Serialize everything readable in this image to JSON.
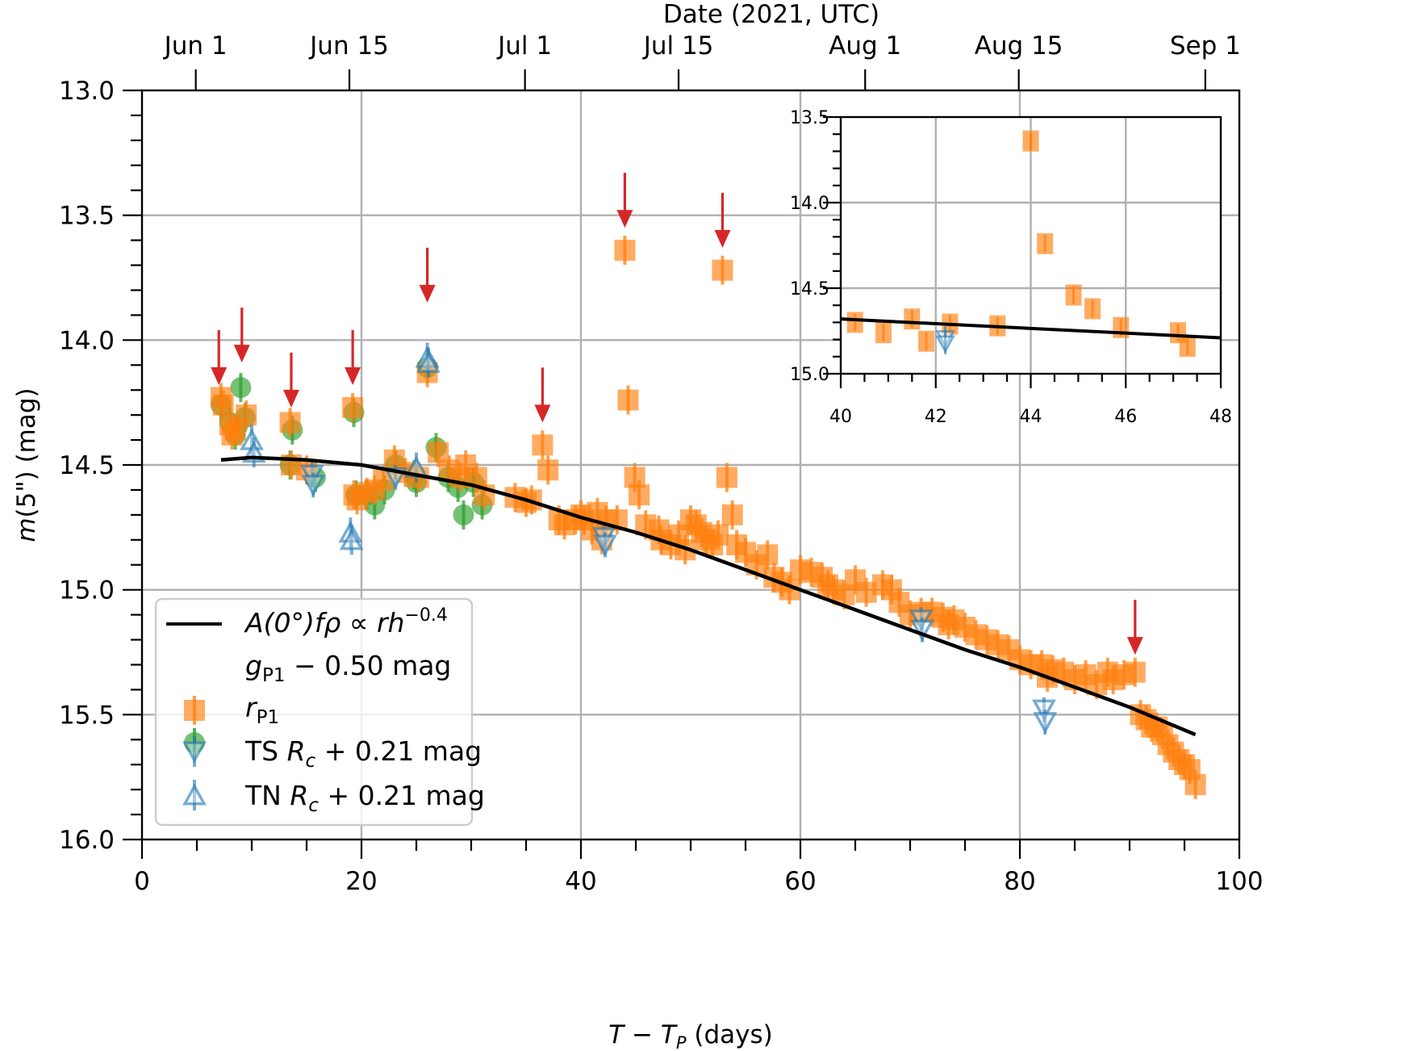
{
  "chart_data": {
    "type": "scatter",
    "title": "",
    "xlabel": "T − T_P (days)",
    "xlabel_parts": {
      "italic1": "T",
      "minus": " − ",
      "italic2": "T",
      "sub": "P",
      "rest": " (days)"
    },
    "ylabel": "m(5\") (mag)",
    "ylabel_parts": {
      "italic": "m",
      "rest": "(5\") (mag)"
    },
    "top_xlabel": "Date (2021, UTC)",
    "xlim": [
      0,
      100
    ],
    "ylim": [
      16.0,
      13.0
    ],
    "y_inverted": true,
    "grid": true,
    "xticks": [
      0,
      20,
      40,
      60,
      80,
      100
    ],
    "xtick_labels": [
      "0",
      "20",
      "40",
      "60",
      "80",
      "100"
    ],
    "yticks": [
      13.0,
      13.5,
      14.0,
      14.5,
      15.0,
      15.5,
      16.0
    ],
    "ytick_labels": [
      "13.0",
      "13.5",
      "14.0",
      "14.5",
      "15.0",
      "15.5",
      "16.0"
    ],
    "top_ticks": [
      {
        "label": "Jun 1",
        "x": 4.9
      },
      {
        "label": "Jun 15",
        "x": 18.9
      },
      {
        "label": "Jul 1",
        "x": 34.9
      },
      {
        "label": "Jul 15",
        "x": 48.9
      },
      {
        "label": "Aug 1",
        "x": 65.9
      },
      {
        "label": "Aug 15",
        "x": 79.9
      },
      {
        "label": "Sep 1",
        "x": 96.9
      }
    ],
    "legend": {
      "location": "lower-left",
      "entries": [
        {
          "key": "model",
          "label_parts": [
            "A(0°)fρ ∝ rh",
            "−0.4"
          ]
        },
        {
          "key": "g",
          "label_parts": [
            "g",
            "P1",
            " − 0.50 mag"
          ]
        },
        {
          "key": "r",
          "label_parts": [
            "r",
            "P1",
            ""
          ]
        },
        {
          "key": "ts",
          "label_parts": [
            "TS ",
            "R",
            "c",
            " + 0.21 mag"
          ]
        },
        {
          "key": "tn",
          "label_parts": [
            "TN ",
            "R",
            "c",
            " + 0.21 mag"
          ]
        }
      ]
    },
    "colors": {
      "g": "#2ca02c",
      "r": "#ff7f0e",
      "ts": "#1f77b4",
      "tn": "#1f77b4",
      "model": "#000000",
      "arrow": "#d62728",
      "grid": "#b0b0b0"
    },
    "series": [
      {
        "name": "model",
        "label": "A(0°)fρ ∝ rh^-0.4",
        "kind": "line",
        "x": [
          7.2,
          10,
          15,
          20,
          25,
          30,
          35,
          40,
          45,
          50,
          55,
          60,
          65,
          70,
          75,
          80,
          85,
          90,
          96
        ],
        "y": [
          14.48,
          14.47,
          14.48,
          14.5,
          14.54,
          14.58,
          14.64,
          14.71,
          14.77,
          14.84,
          14.92,
          15.0,
          15.08,
          15.16,
          15.24,
          15.31,
          15.39,
          15.47,
          15.58
        ]
      },
      {
        "name": "g_P1 - 0.50 mag",
        "kind": "errorbar-circle",
        "x": [
          7.2,
          8.0,
          8.5,
          9.0,
          9.4,
          13.5,
          13.7,
          15.8,
          19.3,
          19.5,
          20.5,
          21.2,
          22.1,
          23.1,
          24.8,
          25.0,
          26.0,
          26.8,
          27.9,
          28.8,
          29.3,
          30.2,
          31.0
        ],
        "y": [
          14.26,
          14.33,
          14.38,
          14.19,
          14.31,
          14.5,
          14.36,
          14.55,
          14.29,
          14.62,
          14.62,
          14.66,
          14.6,
          14.5,
          14.54,
          14.57,
          14.11,
          14.43,
          14.55,
          14.59,
          14.7,
          14.57,
          14.66
        ],
        "yerr": 0.03
      },
      {
        "name": "r_P1",
        "kind": "errorbar-square",
        "x": [
          7.2,
          7.4,
          8.0,
          8.2,
          8.5,
          9.5,
          13.5,
          13.6,
          15.0,
          19.2,
          19.3,
          19.6,
          20.5,
          21.2,
          22.0,
          23.0,
          24.0,
          25.2,
          26.0,
          27.0,
          28.0,
          29.0,
          29.5,
          30.5,
          31.2,
          34.0,
          35.0,
          35.5,
          36.5,
          37.0,
          38.0,
          38.5,
          39.5,
          40.0,
          40.3,
          41.0,
          41.5,
          41.9,
          42.3,
          43.3,
          44.0,
          44.3,
          44.9,
          45.3,
          45.9,
          47.1,
          47.3,
          48.2,
          48.9,
          49.5,
          50.0,
          50.5,
          51.0,
          51.4,
          52.0,
          52.5,
          52.9,
          53.3,
          53.8,
          54.2,
          55.0,
          56.0,
          57.0,
          57.6,
          58.3,
          59.0,
          60.0,
          61.0,
          62.0,
          62.5,
          63.0,
          64.0,
          65.0,
          66.0,
          67.5,
          68.3,
          69.0,
          70.0,
          71.0,
          72.0,
          73.0,
          73.5,
          74.0,
          75.0,
          76.0,
          77.0,
          78.0,
          79.0,
          80.0,
          81.0,
          82.0,
          82.5,
          83.0,
          84.0,
          85.0,
          86.0,
          87.0,
          88.0,
          88.5,
          89.5,
          90.5,
          91.0,
          91.5,
          92.0,
          92.5,
          93.0,
          93.5,
          94.0,
          94.5,
          95.0,
          95.5,
          96.0
        ],
        "y": [
          14.23,
          14.26,
          14.34,
          14.38,
          14.36,
          14.3,
          14.33,
          14.5,
          14.52,
          14.27,
          14.62,
          14.64,
          14.61,
          14.6,
          14.56,
          14.48,
          14.53,
          14.55,
          14.13,
          14.45,
          14.52,
          14.55,
          14.5,
          14.55,
          14.62,
          14.63,
          14.65,
          14.64,
          14.42,
          14.52,
          14.72,
          14.74,
          14.72,
          14.7,
          14.72,
          14.76,
          14.69,
          14.8,
          14.72,
          14.72,
          13.64,
          14.24,
          14.55,
          14.62,
          14.74,
          14.76,
          14.8,
          14.82,
          14.78,
          14.84,
          14.72,
          14.74,
          14.77,
          14.8,
          14.82,
          14.78,
          13.72,
          14.55,
          14.7,
          14.82,
          14.85,
          14.9,
          14.86,
          14.95,
          14.97,
          15.0,
          14.92,
          14.93,
          14.95,
          14.98,
          15.0,
          15.02,
          14.96,
          15.01,
          14.98,
          15.0,
          15.05,
          15.1,
          15.09,
          15.09,
          15.11,
          15.14,
          15.12,
          15.15,
          15.18,
          15.2,
          15.22,
          15.24,
          15.28,
          15.3,
          15.3,
          15.35,
          15.32,
          15.33,
          15.36,
          15.34,
          15.38,
          15.33,
          15.36,
          15.34,
          15.33,
          15.5,
          15.52,
          15.55,
          15.55,
          15.58,
          15.62,
          15.65,
          15.68,
          15.7,
          15.72,
          15.78
        ],
        "yerr": 0.03
      },
      {
        "name": "TS R_c + 0.21 mag",
        "kind": "errorbar-triangle-down",
        "x": [
          15.5,
          15.6,
          23.1,
          42.1,
          42.2,
          71.0,
          71.1,
          82.2,
          82.3
        ],
        "y": [
          14.54,
          14.58,
          14.55,
          14.79,
          14.82,
          15.12,
          15.16,
          15.48,
          15.53
        ],
        "yerr": 0.05
      },
      {
        "name": "TN R_c + 0.21 mag",
        "kind": "errorbar-triangle-up",
        "x": [
          10.0,
          10.2,
          19.0,
          19.1,
          25.0,
          26.0,
          26.1
        ],
        "y": [
          14.4,
          14.45,
          14.77,
          14.8,
          14.51,
          14.07,
          14.09
        ],
        "yerr": 0.06
      }
    ],
    "annotations": [
      {
        "type": "arrow",
        "x": 7.0,
        "y_tip": 14.18,
        "y_tail": 13.96,
        "description": "outburst marker"
      },
      {
        "type": "arrow",
        "x": 9.1,
        "y_tip": 14.09,
        "y_tail": 13.87,
        "description": "outburst marker"
      },
      {
        "type": "arrow",
        "x": 13.6,
        "y_tip": 14.27,
        "y_tail": 14.05,
        "description": "outburst marker"
      },
      {
        "type": "arrow",
        "x": 19.2,
        "y_tip": 14.18,
        "y_tail": 13.96,
        "description": "outburst marker"
      },
      {
        "type": "arrow",
        "x": 26.0,
        "y_tip": 13.85,
        "y_tail": 13.63,
        "description": "outburst marker"
      },
      {
        "type": "arrow",
        "x": 36.5,
        "y_tip": 14.33,
        "y_tail": 14.11,
        "description": "outburst marker"
      },
      {
        "type": "arrow",
        "x": 44.0,
        "y_tip": 13.55,
        "y_tail": 13.33,
        "description": "outburst marker"
      },
      {
        "type": "arrow",
        "x": 52.9,
        "y_tip": 13.63,
        "y_tail": 13.41,
        "description": "outburst marker"
      },
      {
        "type": "arrow",
        "x": 90.5,
        "y_tip": 15.26,
        "y_tail": 15.04,
        "description": "outburst marker"
      }
    ],
    "inset": {
      "xlim": [
        40,
        48
      ],
      "ylim": [
        15.0,
        13.5
      ],
      "y_inverted": true,
      "grid": true,
      "xticks": [
        40,
        42,
        44,
        46,
        48
      ],
      "xtick_labels": [
        "40",
        "42",
        "44",
        "46",
        "48"
      ],
      "yticks": [
        13.5,
        14.0,
        14.5,
        15.0
      ],
      "ytick_labels": [
        "13.5",
        "14.0",
        "14.5",
        "15.0"
      ],
      "model": {
        "x": [
          40,
          48
        ],
        "y": [
          14.68,
          14.79
        ]
      },
      "r_P1": {
        "x": [
          40.3,
          40.9,
          41.5,
          41.8,
          42.3,
          43.3,
          44.0,
          44.3,
          44.9,
          45.3,
          45.9,
          47.1,
          47.3
        ],
        "y": [
          14.7,
          14.76,
          14.68,
          14.81,
          14.71,
          14.72,
          13.64,
          14.24,
          14.54,
          14.62,
          14.73,
          14.76,
          14.84
        ]
      },
      "ts": {
        "x": [
          42.2,
          42.2
        ],
        "y": [
          14.79,
          14.82
        ]
      }
    }
  }
}
